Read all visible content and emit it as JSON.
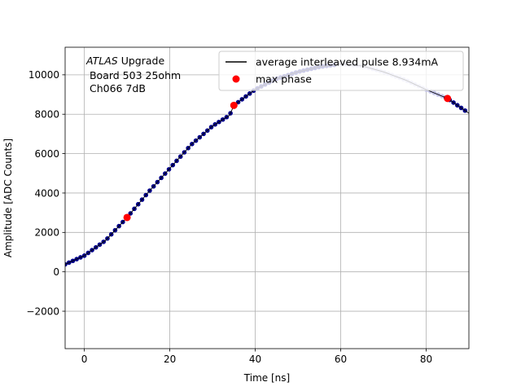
{
  "chart_data": {
    "type": "scatter",
    "title": "",
    "xlabel": "Time [ns]",
    "ylabel": "Amplitude [ADC Counts]",
    "xlim": [
      -4.5,
      90
    ],
    "ylim": [
      -3900,
      11400
    ],
    "xticks": [
      0,
      20,
      40,
      60,
      80
    ],
    "xtick_labels": [
      "0",
      "20",
      "40",
      "60",
      "80"
    ],
    "yticks": [
      -2000,
      0,
      2000,
      4000,
      6000,
      8000,
      10000
    ],
    "ytick_labels": [
      "−2000",
      "0",
      "2000",
      "4000",
      "6000",
      "8000",
      "10000"
    ],
    "grid": true,
    "legend_position": "top-right",
    "annotation": {
      "italic": "ATLAS",
      "rest": " Upgrade",
      "line2": " Board 503 25ohm",
      "line3": " Ch066 7dB"
    },
    "series": [
      {
        "name": "average interleaved pulse 8.934mA",
        "style": "line",
        "color": "#000000",
        "x": [
          -4.5,
          0,
          5,
          10,
          15,
          20,
          25,
          30,
          34,
          35,
          40,
          45,
          50,
          55,
          60,
          65,
          70,
          75,
          80,
          85,
          90
        ],
        "y": [
          380,
          820,
          1600,
          2760,
          4050,
          5250,
          6450,
          7400,
          7950,
          8450,
          9260,
          9800,
          10150,
          10400,
          10550,
          10450,
          10150,
          9750,
          9250,
          8800,
          8050
        ]
      },
      {
        "name": "max phase",
        "style": "markers",
        "color": "#ff0000",
        "x": [
          10,
          35,
          85
        ],
        "y": [
          2760,
          8450,
          8800
        ]
      }
    ],
    "colors": {
      "samples_dark": "#00008b",
      "samples_light": "#c8c8ec",
      "grid": "#b0b0b0"
    }
  }
}
